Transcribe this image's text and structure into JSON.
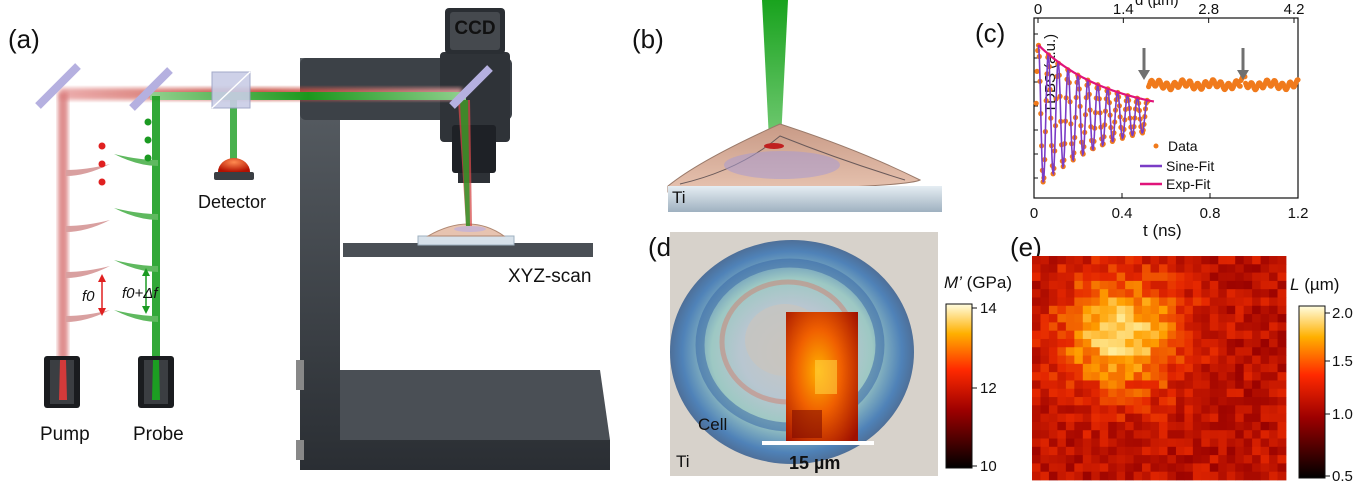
{
  "panels": {
    "a": "(a)",
    "b": "(b)",
    "c": "(c)",
    "d": "(d)",
    "e": "(e)"
  },
  "setup": {
    "ccd": "CCD",
    "detector": "Detector",
    "xyz_scan": "XYZ-scan",
    "pump": "Pump",
    "probe": "Probe",
    "f0": "f0",
    "f0_df_base": "f0",
    "f0_df_rest": "+Δf"
  },
  "sample": {
    "substrate": "Ti"
  },
  "chart_data": {
    "type": "line",
    "ylabel": "TDBS (a.u.)",
    "xlabel": "t (ns)",
    "top_axis_label": "d (µm)",
    "xlim": [
      0,
      1.2
    ],
    "x_ticks": [
      "0",
      "0.4",
      "0.8",
      "1.2"
    ],
    "top_ticks": [
      "0",
      "1.4",
      "2.8",
      "4.2"
    ],
    "legend": [
      "Data",
      "Sine-Fit",
      "Exp-Fit"
    ],
    "legend_placement": "bottom-center",
    "colors": {
      "data": "#f07a1c",
      "sine_fit": "#7a3cc6",
      "exp_fit": "#e0147a",
      "arrow": "#707070"
    },
    "arrows_at_t": [
      0.5,
      0.95
    ],
    "exp_fit": {
      "tau_ns": 0.33,
      "amplitude": 0.82,
      "range_ns": [
        0.02,
        0.55
      ]
    },
    "sine_fit": {
      "period_ns": 0.045,
      "range_ns": [
        0.02,
        0.52
      ]
    }
  },
  "map_d": {
    "cell": "Cell",
    "substrate": "Ti",
    "scale_bar": "15 µm",
    "cbar_title_sym": "M’",
    "cbar_title_unit": " (GPa)",
    "cbar_ticks": [
      "14",
      "12",
      "10"
    ]
  },
  "map_e": {
    "cbar_title_sym": "L",
    "cbar_title_unit": " (µm)",
    "cbar_ticks": [
      "2.0",
      "1.5",
      "1.0",
      "0.5"
    ]
  }
}
